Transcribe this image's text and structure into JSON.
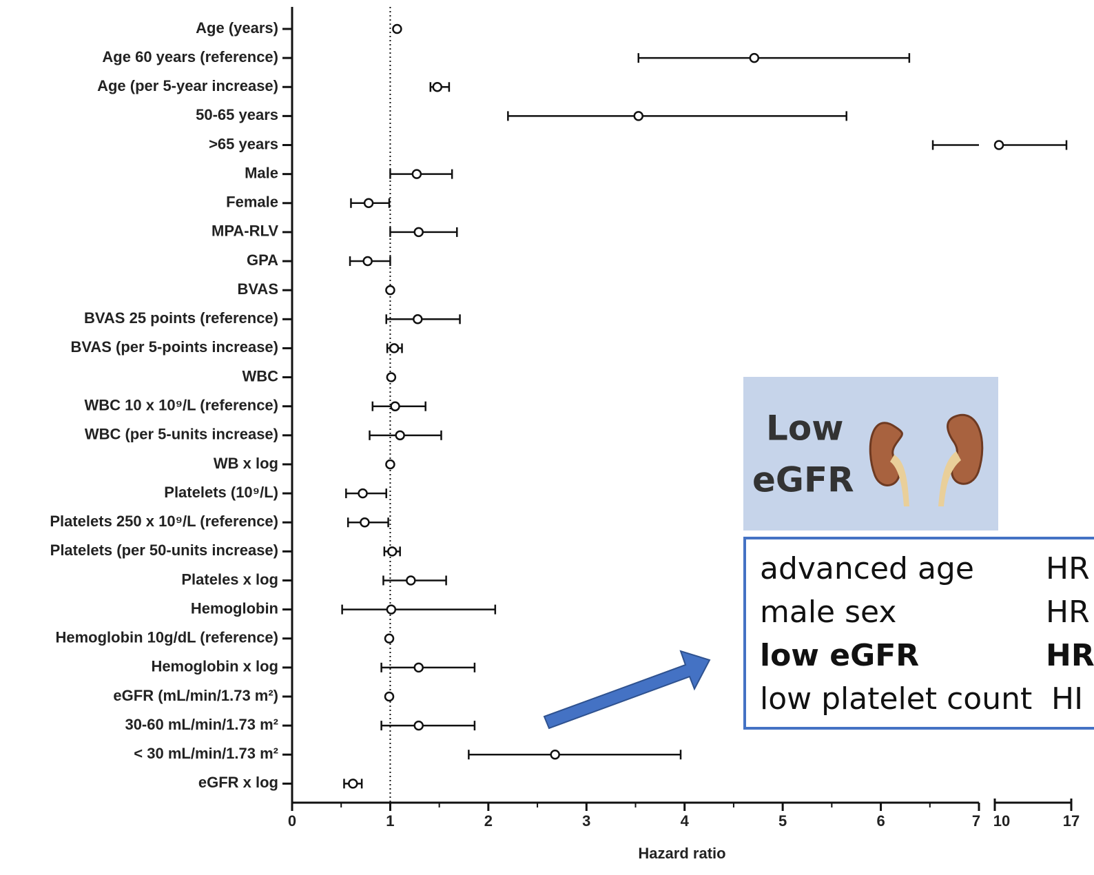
{
  "chart_data": {
    "type": "forest",
    "categories": [
      "Age (years)",
      "Age 60 years (reference)",
      "Age (per 5-year increase)",
      "50-65 years",
      ">65 years",
      "Male",
      "Female",
      "MPA-RLV",
      "GPA",
      "BVAS",
      "BVAS 25 points (reference)",
      "BVAS (per 5-points increase)",
      "WBC",
      "WBC 10 x 10⁹/L (reference)",
      "WBC (per 5-units increase)",
      "WB x log",
      "Platelets (10⁹/L)",
      "Platelets 250 x 10⁹/L (reference)",
      "Platelets (per 50-units increase)",
      "Plateles x log",
      "Hemoglobin",
      "Hemoglobin 10g/dL (reference)",
      "Hemoglobin x log",
      "eGFR (mL/min/1.73 m²)",
      "30-60 mL/min/1.73 m²",
      "< 30 mL/min/1.73 m²",
      "eGFR x log"
    ],
    "values": [
      1.07,
      4.71,
      1.48,
      3.53,
      10.38,
      1.27,
      0.78,
      1.29,
      0.77,
      1.0,
      1.28,
      1.04,
      1.01,
      1.05,
      1.1,
      1.0,
      0.72,
      0.74,
      1.02,
      1.21,
      1.01,
      0.99,
      1.29,
      0.99,
      1.29,
      2.68,
      0.62
    ],
    "lower": [
      null,
      3.53,
      1.41,
      2.2,
      6.53,
      1.0,
      0.6,
      1.0,
      0.59,
      null,
      0.96,
      0.97,
      null,
      0.82,
      0.79,
      null,
      0.55,
      0.57,
      0.94,
      0.93,
      0.51,
      null,
      0.91,
      null,
      0.91,
      1.8,
      0.53
    ],
    "upper": [
      null,
      6.29,
      1.6,
      5.65,
      16.56,
      1.63,
      0.99,
      1.68,
      1.0,
      null,
      1.71,
      1.12,
      null,
      1.36,
      1.52,
      null,
      0.96,
      0.98,
      1.1,
      1.57,
      2.07,
      null,
      1.86,
      null,
      1.86,
      3.96,
      0.71
    ],
    "xlim": [
      0,
      7
    ],
    "xticks": [
      0,
      1,
      2,
      3,
      4,
      5,
      6,
      7
    ],
    "xminorticks": [
      0.5,
      1.5,
      2.5,
      3.5,
      4.5,
      5.5,
      6.5
    ],
    "x2lim": [
      10,
      17
    ],
    "x2ticks": [
      10,
      17
    ],
    "reference_line": 1,
    "xlabel": "Hazard ratio",
    "color": "#111111"
  },
  "callout": {
    "badge": [
      "Low",
      "eGFR"
    ],
    "rows": [
      {
        "label": "advanced age",
        "value": "HR",
        "bold": false
      },
      {
        "label": "male sex",
        "value": "HR",
        "bold": false
      },
      {
        "label": "low eGFR",
        "value": "HR",
        "bold": true
      },
      {
        "label": "low platelet count",
        "value": "HI",
        "bold": false
      }
    ]
  }
}
